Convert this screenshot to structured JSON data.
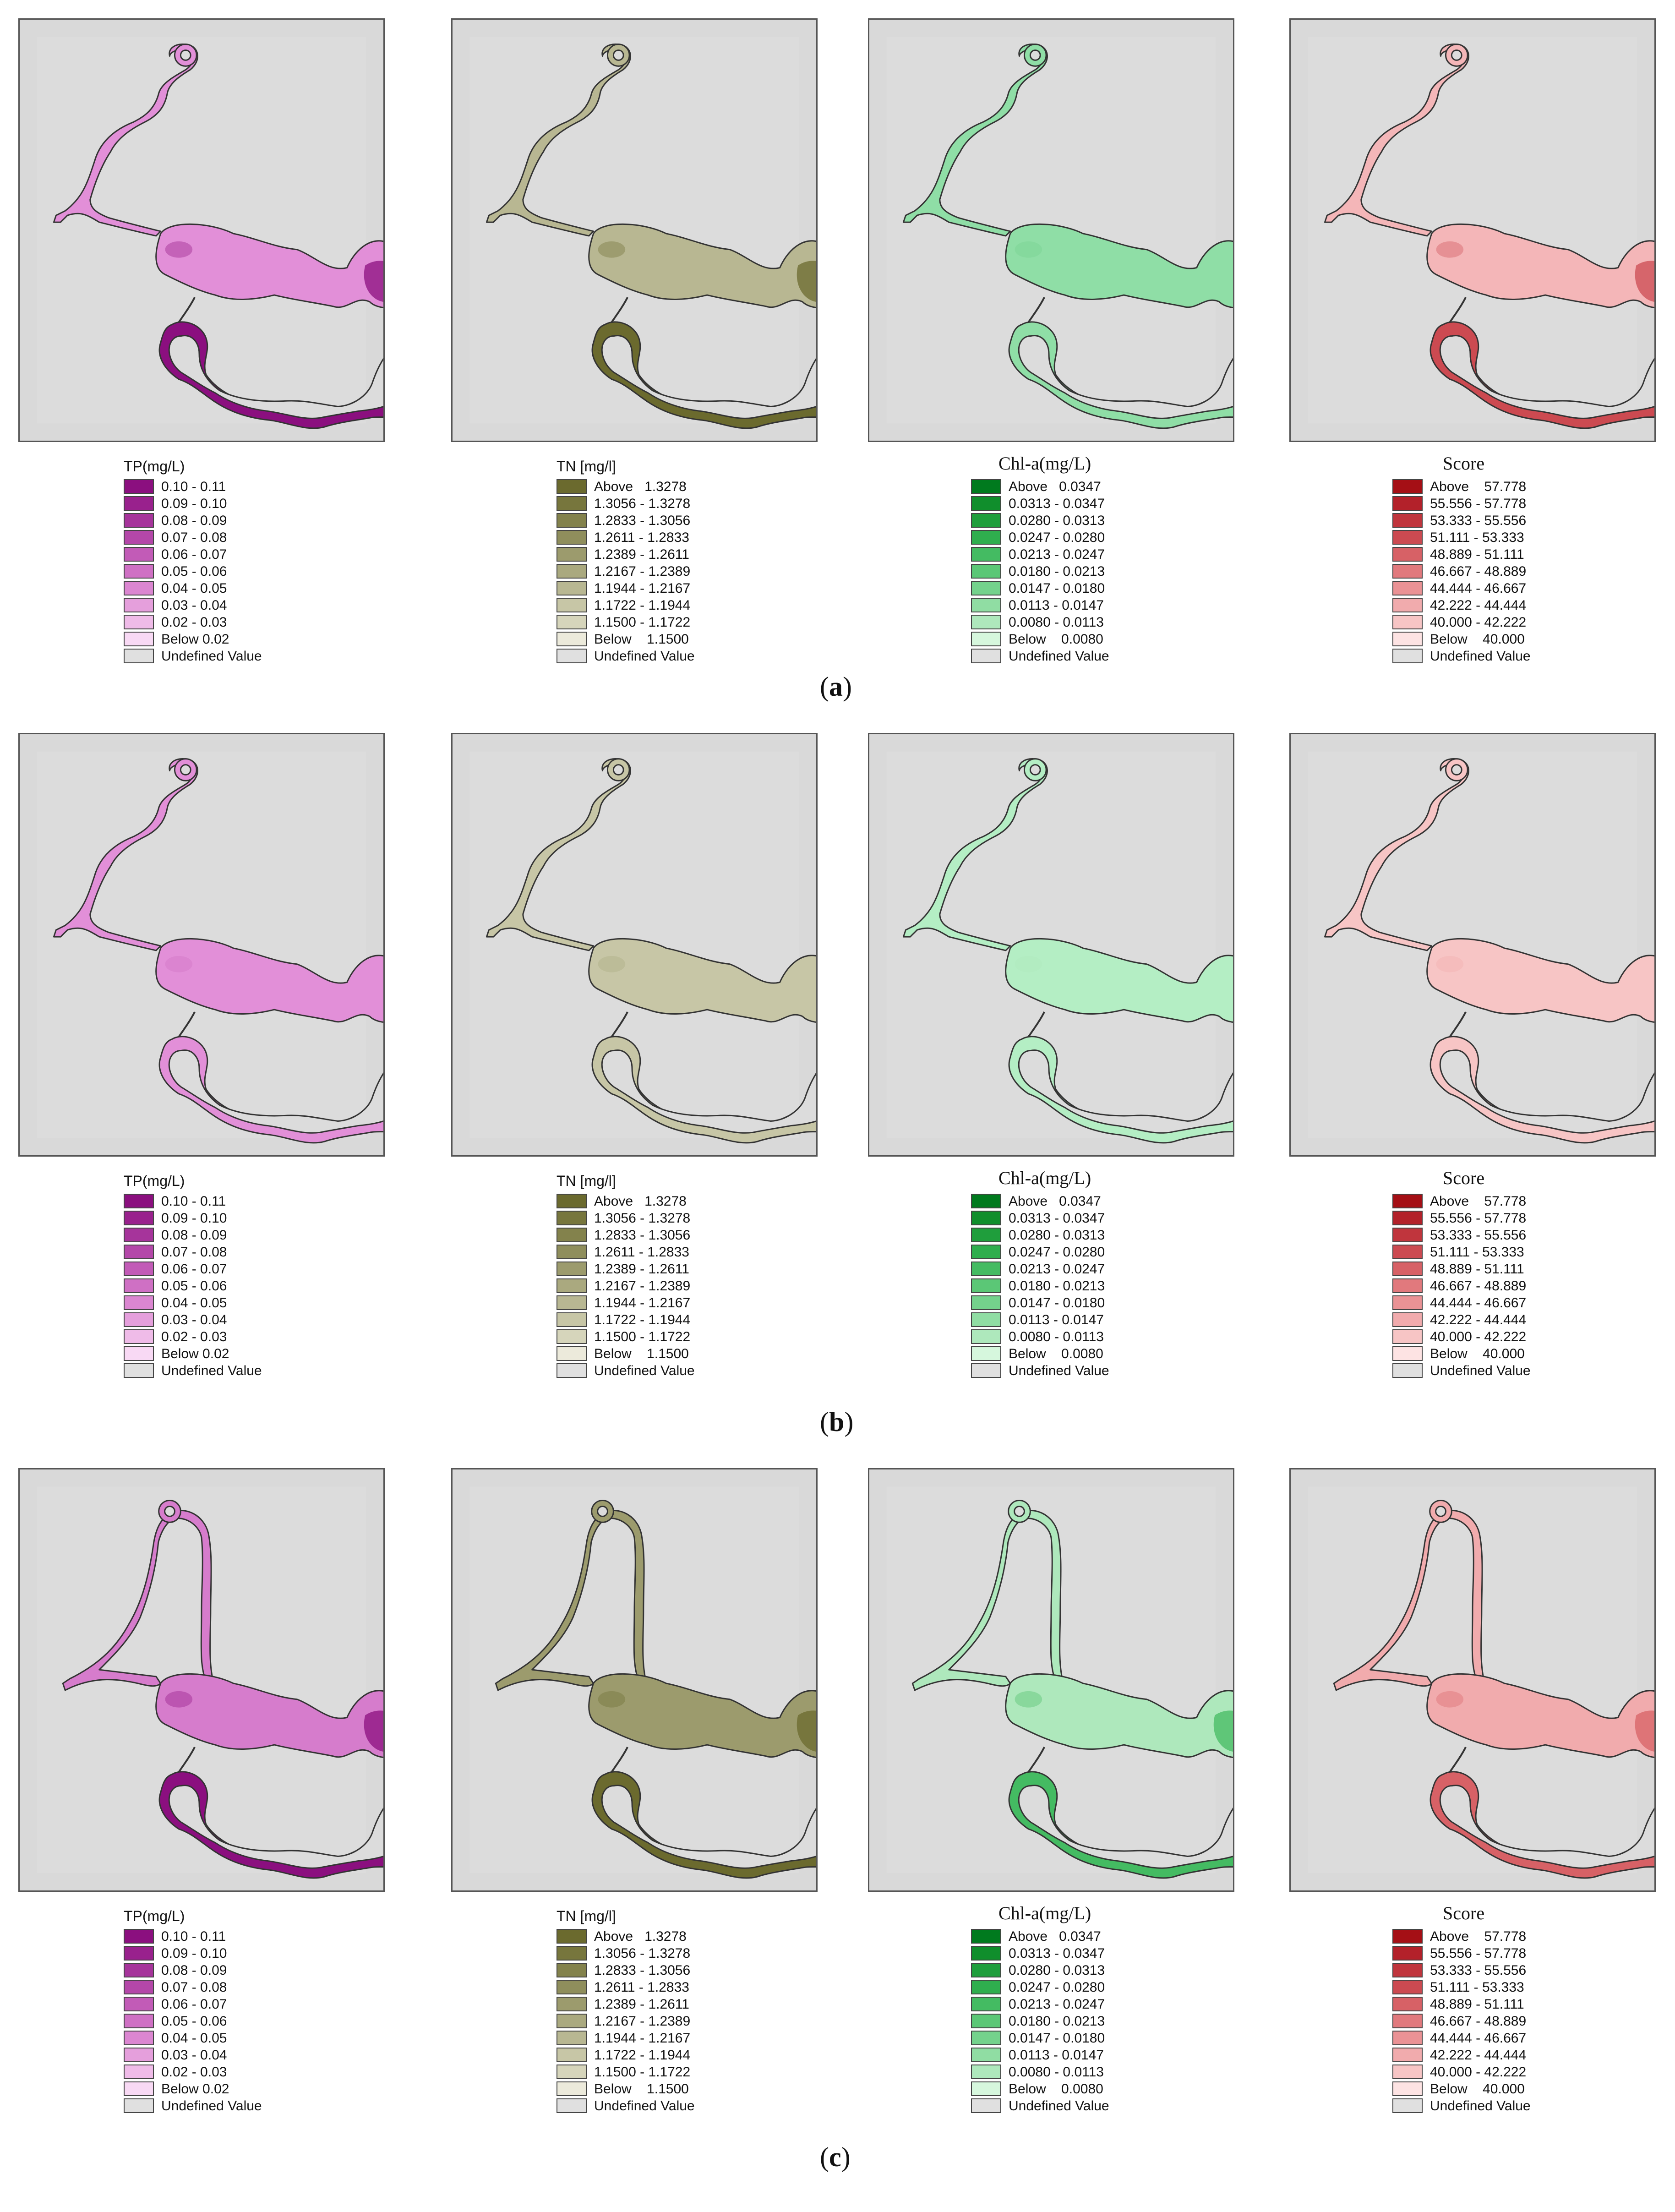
{
  "row_labels": [
    "a",
    "b",
    "c"
  ],
  "legends": {
    "tp": {
      "title": "TP(mg/L)",
      "items": [
        {
          "label": "0.10 - 0.11",
          "color": "#8b0f7f"
        },
        {
          "label": "0.09 - 0.10",
          "color": "#99218d"
        },
        {
          "label": "0.08 - 0.09",
          "color": "#a6349b"
        },
        {
          "label": "0.07 - 0.08",
          "color": "#b447a9"
        },
        {
          "label": "0.06 - 0.07",
          "color": "#c25bb7"
        },
        {
          "label": "0.05 - 0.06",
          "color": "#cf70c4"
        },
        {
          "label": "0.04 - 0.05",
          "color": "#db86d1"
        },
        {
          "label": "0.03 - 0.04",
          "color": "#e59fdc"
        },
        {
          "label": "0.02 - 0.03",
          "color": "#efbbe8"
        },
        {
          "label": "Below 0.02",
          "color": "#f8d9f4"
        },
        {
          "label": "Undefined Value",
          "color": "#e0e0e0"
        }
      ]
    },
    "tn": {
      "title": "TN [mg/l]",
      "items": [
        {
          "label": "Above   1.3278",
          "color": "#6b6a2e"
        },
        {
          "label": "1.3056 - 1.3278",
          "color": "#77763d"
        },
        {
          "label": "1.2833 - 1.3056",
          "color": "#83824c"
        },
        {
          "label": "1.2611 - 1.2833",
          "color": "#8f8e5c"
        },
        {
          "label": "1.2389 - 1.2611",
          "color": "#9c9b6d"
        },
        {
          "label": "1.2167 - 1.2389",
          "color": "#aaa97f"
        },
        {
          "label": "1.1944 - 1.2167",
          "color": "#b8b792"
        },
        {
          "label": "1.1722 - 1.1944",
          "color": "#c7c6a6"
        },
        {
          "label": "1.1500 - 1.1722",
          "color": "#d6d5bb"
        },
        {
          "label": "Below    1.1500",
          "color": "#eceadb"
        },
        {
          "label": "Undefined Value",
          "color": "#e0e0e0"
        }
      ]
    },
    "chl": {
      "title": "Chl-a(mg/L)",
      "items": [
        {
          "label": "Above   0.0347",
          "color": "#007a1e"
        },
        {
          "label": "0.0313 - 0.0347",
          "color": "#108e2c"
        },
        {
          "label": "0.0280 - 0.0313",
          "color": "#1f9e3c"
        },
        {
          "label": "0.0247 - 0.0280",
          "color": "#2fae4e"
        },
        {
          "label": "0.0213 - 0.0247",
          "color": "#44bb62"
        },
        {
          "label": "0.0180 - 0.0213",
          "color": "#5bc776"
        },
        {
          "label": "0.0147 - 0.0180",
          "color": "#74d28c"
        },
        {
          "label": "0.0113 - 0.0147",
          "color": "#90dda3"
        },
        {
          "label": "0.0080 - 0.0113",
          "color": "#aee8bc"
        },
        {
          "label": "Below    0.0080",
          "color": "#d6f7dd"
        },
        {
          "label": "Undefined Value",
          "color": "#e0e0e0"
        }
      ]
    },
    "score": {
      "title": "Score",
      "items": [
        {
          "label": "Above    57.778",
          "color": "#a50f15"
        },
        {
          "label": "55.556 - 57.778",
          "color": "#b3212a"
        },
        {
          "label": "53.333 - 55.556",
          "color": "#c0353d"
        },
        {
          "label": "51.111 - 53.333",
          "color": "#cc4a51"
        },
        {
          "label": "48.889 - 51.111",
          "color": "#d76166"
        },
        {
          "label": "46.667 - 48.889",
          "color": "#e1797d"
        },
        {
          "label": "44.444 - 46.667",
          "color": "#ea9295"
        },
        {
          "label": "42.222 - 44.444",
          "color": "#f1abad"
        },
        {
          "label": "40.000 - 42.222",
          "color": "#f7c5c5"
        },
        {
          "label": "Below    40.000",
          "color": "#fde3e3"
        },
        {
          "label": "Undefined Value",
          "color": "#e0e0e0"
        }
      ]
    }
  },
  "maps": {
    "a": {
      "tp": {
        "base": "#e28fd8",
        "shade": "#8b0f7f",
        "shade_area": "south"
      },
      "tn": {
        "base": "#b8b792",
        "shade": "#6b6a2e",
        "shade_area": "south"
      },
      "chl": {
        "base": "#8fdea6",
        "shade": "#74d28c",
        "shade_area": "none"
      },
      "score": {
        "base": "#f4b6b8",
        "shade": "#cc4a51",
        "shade_area": "south"
      }
    },
    "b": {
      "tp": {
        "base": "#e28fd8",
        "shade": "#cf70c4",
        "shade_area": "none"
      },
      "tn": {
        "base": "#c7c6a6",
        "shade": "#aaa97f",
        "shade_area": "none"
      },
      "chl": {
        "base": "#b4eec4",
        "shade": "#aee8bc",
        "shade_area": "none"
      },
      "score": {
        "base": "#f7c5c5",
        "shade": "#f1abad",
        "shade_area": "none"
      }
    },
    "c": {
      "tp": {
        "base": "#d67ccc",
        "shade": "#8b0f7f",
        "shade_area": "south"
      },
      "tn": {
        "base": "#9c9b6d",
        "shade": "#6b6a2e",
        "shade_area": "south"
      },
      "chl": {
        "base": "#aee8bc",
        "shade": "#44bb62",
        "shade_area": "south"
      },
      "score": {
        "base": "#f1abad",
        "shade": "#d76166",
        "shade_area": "south"
      }
    }
  }
}
